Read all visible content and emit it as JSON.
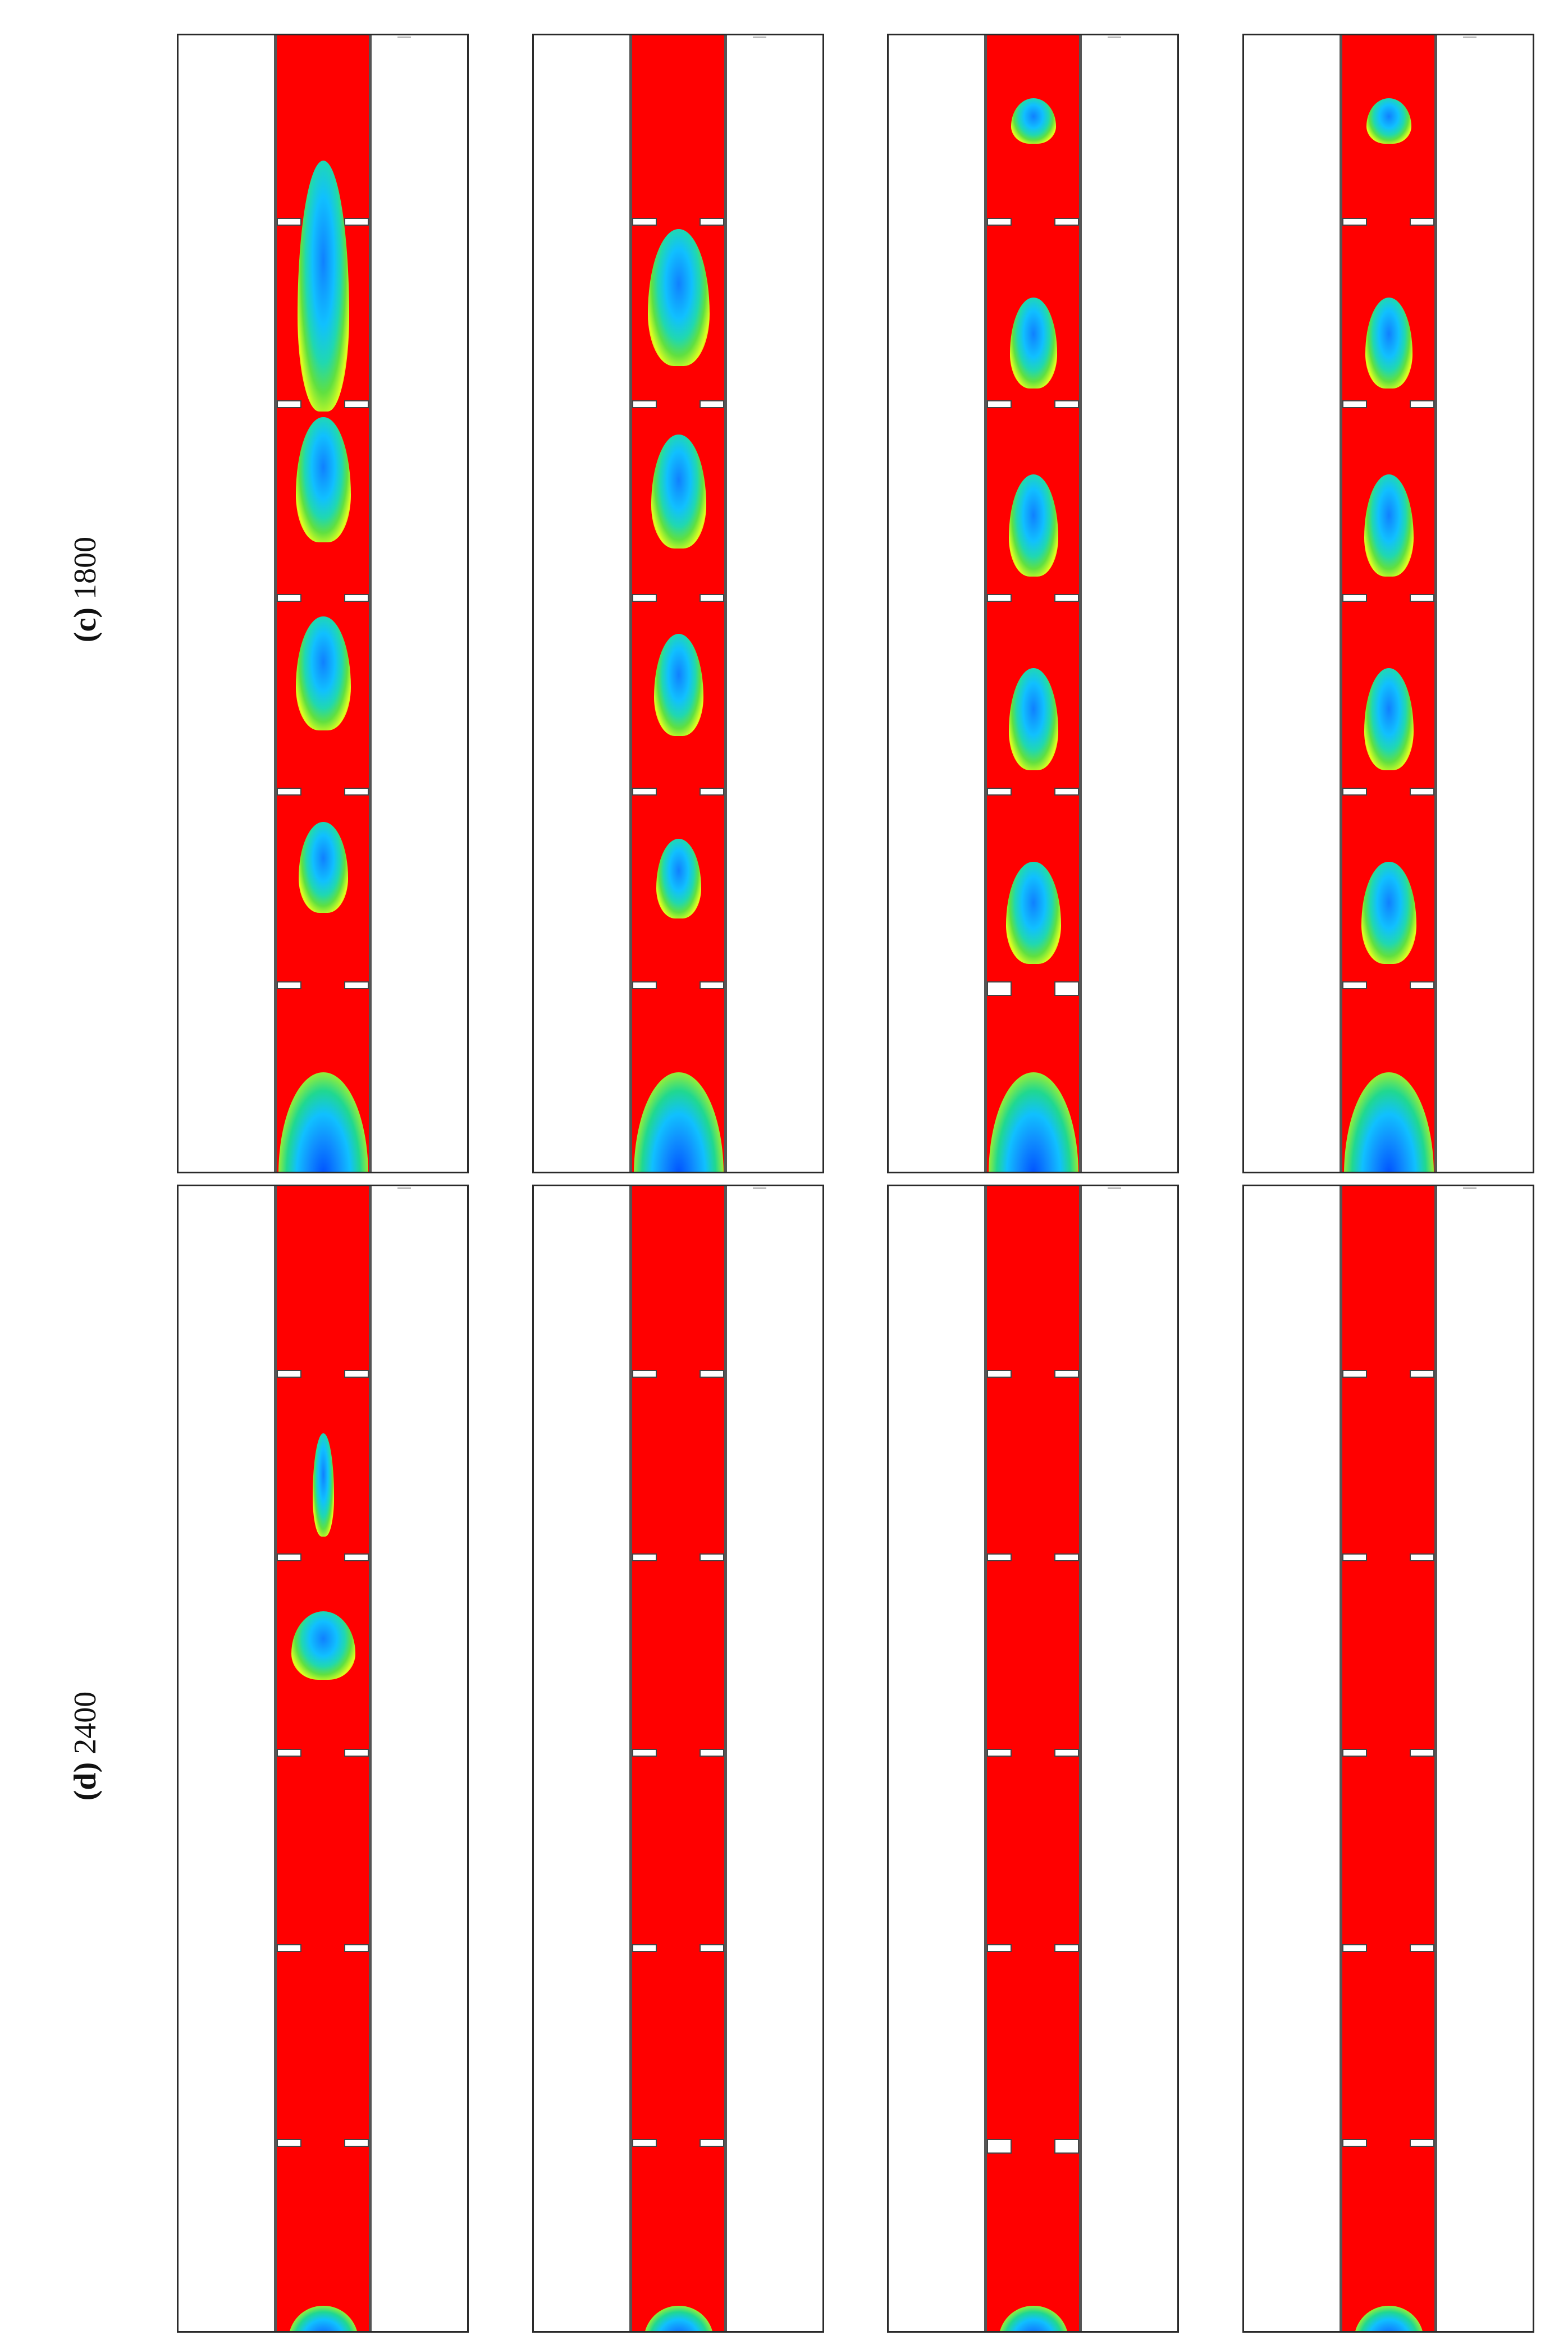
{
  "figure": {
    "rows": [
      {
        "id": "c",
        "letter": "(c)",
        "value": " 1800"
      },
      {
        "id": "d",
        "letter": "(d)",
        "value": " 2400"
      }
    ],
    "columns": 4
  },
  "colors": {
    "liquid": "#ff0000",
    "gas_core": "#0050ff",
    "gas_shell": "#10c0ff",
    "interface_green": "#20d890",
    "interface_yellow": "#ffd000",
    "wall": "#555555",
    "baffle": "#ffffff"
  }
}
